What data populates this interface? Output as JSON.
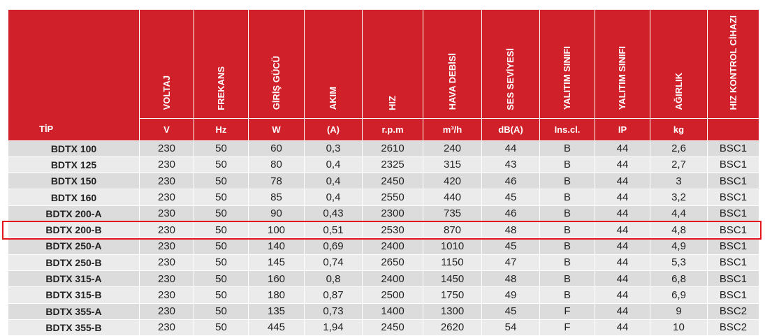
{
  "header": {
    "tip": "TİP",
    "columns": [
      {
        "name": "VOLTAJ",
        "unit": "V"
      },
      {
        "name": "FREKANS",
        "unit": "Hz"
      },
      {
        "name": "GİRİŞ GÜCÜ",
        "unit": "W"
      },
      {
        "name": "AKIM",
        "unit": "(A)"
      },
      {
        "name": "HIZ",
        "unit": "r.p.m"
      },
      {
        "name": "HAVA DEBİSİ",
        "unit": "m³/h"
      },
      {
        "name": "SES SEVİYESİ",
        "unit": "dB(A)"
      },
      {
        "name": "YALITIM SINIFI",
        "unit": "Ins.cl."
      },
      {
        "name": "YALITIM SINIFI",
        "unit": "IP"
      },
      {
        "name": "AĞIRLIK",
        "unit": "kg"
      },
      {
        "name": "HIZ KONTROL CİHAZI",
        "unit": ""
      }
    ]
  },
  "rows": [
    {
      "tip": "BDTX 100",
      "cells": [
        "230",
        "50",
        "60",
        "0,3",
        "2610",
        "240",
        "44",
        "B",
        "44",
        "2,6",
        "BSC1"
      ]
    },
    {
      "tip": "BDTX 125",
      "cells": [
        "230",
        "50",
        "80",
        "0,4",
        "2325",
        "315",
        "43",
        "B",
        "44",
        "2,7",
        "BSC1"
      ]
    },
    {
      "tip": "BDTX 150",
      "cells": [
        "230",
        "50",
        "78",
        "0,4",
        "2450",
        "420",
        "46",
        "B",
        "44",
        "3",
        "BSC1"
      ]
    },
    {
      "tip": "BDTX 160",
      "cells": [
        "230",
        "50",
        "85",
        "0,4",
        "2550",
        "440",
        "45",
        "B",
        "44",
        "3,2",
        "BSC1"
      ]
    },
    {
      "tip": "BDTX 200-A",
      "cells": [
        "230",
        "50",
        "90",
        "0,43",
        "2300",
        "735",
        "46",
        "B",
        "44",
        "4,4",
        "BSC1"
      ]
    },
    {
      "tip": "BDTX 200-B",
      "cells": [
        "230",
        "50",
        "100",
        "0,51",
        "2530",
        "870",
        "48",
        "B",
        "44",
        "4,8",
        "BSC1"
      ]
    },
    {
      "tip": "BDTX 250-A",
      "cells": [
        "230",
        "50",
        "140",
        "0,69",
        "2400",
        "1010",
        "45",
        "B",
        "44",
        "4,9",
        "BSC1"
      ]
    },
    {
      "tip": "BDTX 250-B",
      "cells": [
        "230",
        "50",
        "145",
        "0,74",
        "2650",
        "1150",
        "47",
        "B",
        "44",
        "5,3",
        "BSC1"
      ]
    },
    {
      "tip": "BDTX 315-A",
      "cells": [
        "230",
        "50",
        "160",
        "0,8",
        "2400",
        "1450",
        "48",
        "B",
        "44",
        "6,8",
        "BSC1"
      ]
    },
    {
      "tip": "BDTX 315-B",
      "cells": [
        "230",
        "50",
        "180",
        "0,87",
        "2500",
        "1750",
        "49",
        "B",
        "44",
        "6,9",
        "BSC1"
      ]
    },
    {
      "tip": "BDTX 355-A",
      "cells": [
        "230",
        "50",
        "135",
        "0,73",
        "1400",
        "1300",
        "45",
        "F",
        "44",
        "9",
        "BSC2"
      ]
    },
    {
      "tip": "BDTX 355-B",
      "cells": [
        "230",
        "50",
        "445",
        "1,94",
        "2450",
        "2620",
        "54",
        "F",
        "44",
        "10",
        "BSC2"
      ]
    }
  ],
  "highlighted_row": "BDTX 200-B",
  "colors": {
    "header_bg": "#d0202a",
    "highlight_border": "#e2141c"
  }
}
